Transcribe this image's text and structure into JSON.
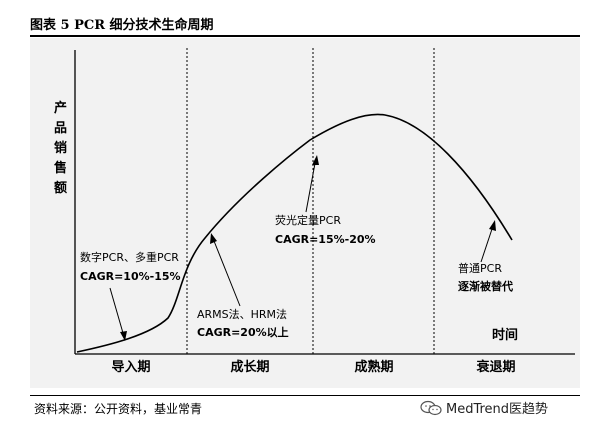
{
  "title": "图表 5 PCR 细分技术生命周期",
  "y_axis_label": [
    "产",
    "品",
    "销",
    "售",
    "额"
  ],
  "x_axis_label": "时间",
  "stages": [
    "导入期",
    "成长期",
    "成熟期",
    "衰退期"
  ],
  "annotations": {
    "intro_tech": "数字PCR、多重PCR",
    "intro_cagr": "CAGR=10%-15%",
    "growth_tech": "ARMS法、HRM法",
    "growth_cagr": "CAGR=20%以上",
    "mature_tech": "荧光定量PCR",
    "mature_cagr": "CAGR=15%-20%",
    "decline_line1": "普通PCR",
    "decline_line2": "逐渐被替代"
  },
  "source": "资料来源：公开资料，基业常青",
  "watermark": "MedTrend医趋势"
}
